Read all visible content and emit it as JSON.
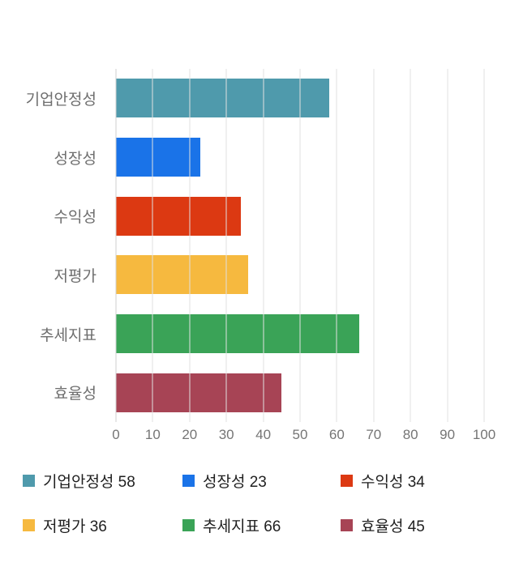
{
  "chart_data": {
    "type": "bar",
    "orientation": "horizontal",
    "title": "",
    "categories": [
      "기업안정성",
      "성장성",
      "수익성",
      "저평가",
      "추세지표",
      "효율성"
    ],
    "values": [
      58,
      23,
      34,
      36,
      66,
      45
    ],
    "colors": [
      "#4f9aac",
      "#1a73e8",
      "#dc3912",
      "#f6b93f",
      "#3aa357",
      "#a74455"
    ],
    "xlim": [
      0,
      100
    ],
    "x_ticks": [
      0,
      10,
      20,
      30,
      40,
      50,
      60,
      70,
      80,
      90,
      100
    ],
    "grid": true,
    "legend_position": "bottom",
    "legend_items": [
      {
        "label": "기업안정성 58",
        "color": "#4f9aac"
      },
      {
        "label": "성장성 23",
        "color": "#1a73e8"
      },
      {
        "label": "수익성 34",
        "color": "#dc3912"
      },
      {
        "label": "저평가 36",
        "color": "#f6b93f"
      },
      {
        "label": "추세지표 66",
        "color": "#3aa357"
      },
      {
        "label": "효율성 45",
        "color": "#a74455"
      }
    ]
  }
}
